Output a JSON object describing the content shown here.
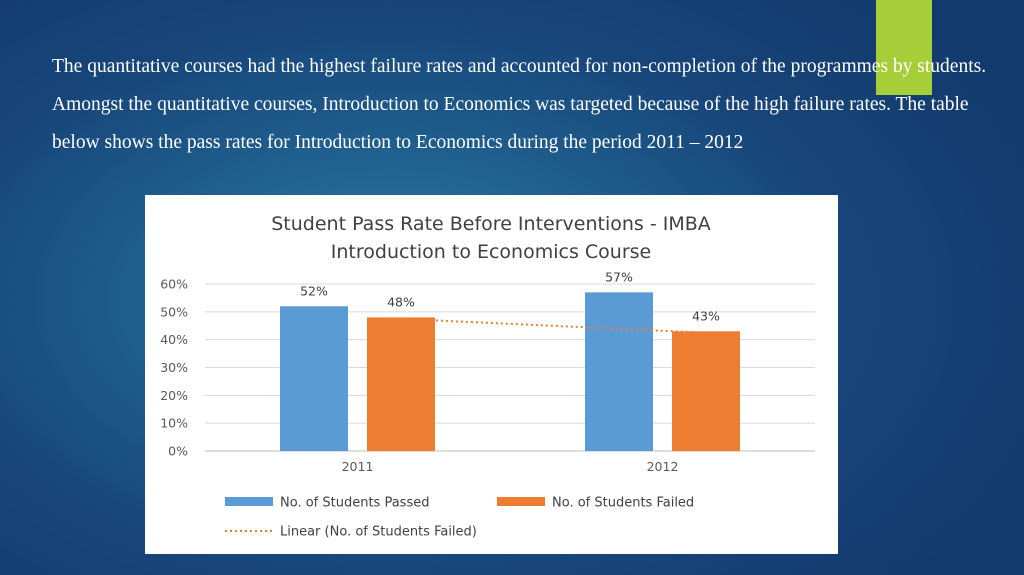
{
  "slide": {
    "text": "The quantitative courses had the highest failure rates and accounted for non-completion of the programmes by students. Amongst the quantitative courses, Introduction to Economics was targeted because of the high failure rates. The table below shows the pass rates for Introduction to Economics during the period 2011 – 2012",
    "accent_color": "#a6ce39"
  },
  "chart_data": {
    "type": "bar",
    "title_lines": [
      "Student Pass Rate Before Interventions - IMBA",
      "Introduction to Economics Course"
    ],
    "categories": [
      "2011",
      "2012"
    ],
    "series": [
      {
        "name": "No. of Students Passed",
        "values": [
          0.52,
          0.57
        ],
        "labels": [
          "52%",
          "57%"
        ],
        "color": "#5b9bd5"
      },
      {
        "name": "No. of Students Failed",
        "values": [
          0.48,
          0.43
        ],
        "labels": [
          "48%",
          "43%"
        ],
        "color": "#ed7d31"
      }
    ],
    "trendline": {
      "name": "Linear (No. of Students Failed)",
      "series": "No. of Students Failed",
      "style": "dotted",
      "color": "#ed7d31"
    },
    "ylim": [
      0,
      0.6
    ],
    "yticks": [
      0,
      0.1,
      0.2,
      0.3,
      0.4,
      0.5,
      0.6
    ],
    "ytick_labels": [
      "0%",
      "10%",
      "20%",
      "30%",
      "40%",
      "50%",
      "60%"
    ],
    "grid": true,
    "legend_position": "bottom"
  }
}
